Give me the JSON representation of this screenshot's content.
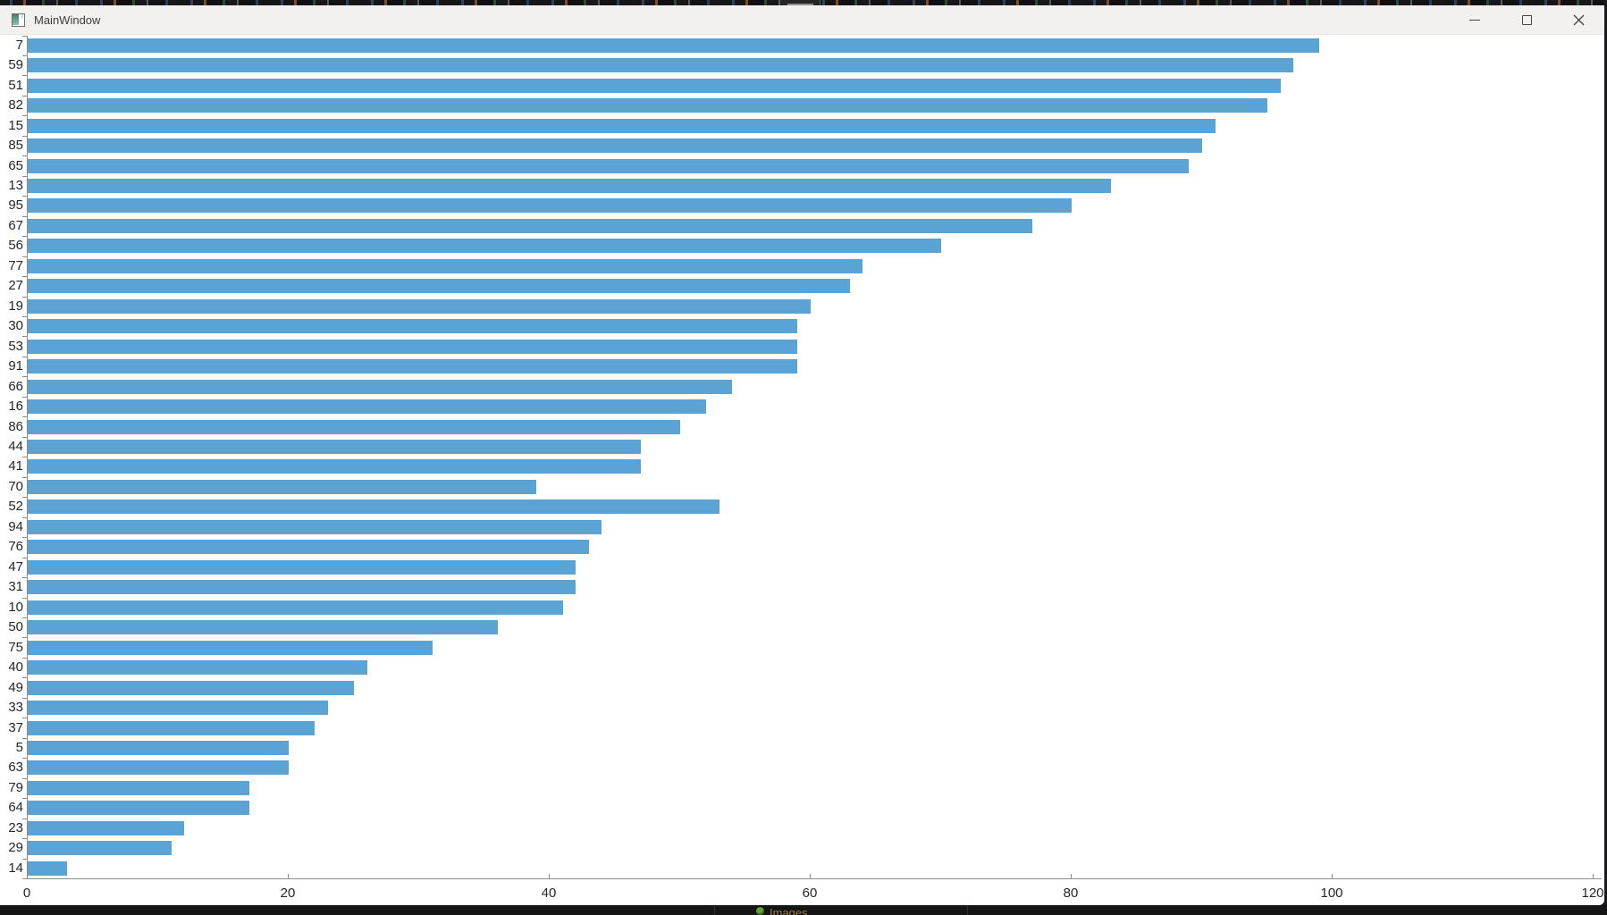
{
  "window": {
    "title": "MainWindow"
  },
  "background": {
    "taskbar_label": "Images"
  },
  "chart_data": {
    "type": "bar",
    "orientation": "horizontal",
    "title": "",
    "xlabel": "",
    "ylabel": "",
    "grid": false,
    "legend": false,
    "bar_color": "#5ba3d4",
    "axis_color": "#8c8c8c",
    "label_color": "#262626",
    "xlim": [
      0,
      120.7
    ],
    "x_ticks": [
      0,
      20,
      40,
      60,
      80,
      100,
      120
    ],
    "categories": [
      "7",
      "59",
      "51",
      "82",
      "15",
      "85",
      "65",
      "13",
      "95",
      "67",
      "56",
      "77",
      "27",
      "19",
      "30",
      "53",
      "91",
      "66",
      "16",
      "86",
      "44",
      "41",
      "70",
      "52",
      "94",
      "76",
      "47",
      "31",
      "10",
      "50",
      "75",
      "40",
      "49",
      "33",
      "37",
      "5",
      "63",
      "79",
      "64",
      "23",
      "29",
      "14"
    ],
    "values": [
      99,
      97,
      96,
      95,
      91,
      90,
      89,
      83,
      80,
      77,
      70,
      64,
      63,
      60,
      59,
      59,
      59,
      54,
      52,
      50,
      47,
      47,
      39,
      53,
      44,
      43,
      42,
      42,
      41,
      36,
      31,
      26,
      25,
      23,
      22,
      20,
      20,
      17,
      17,
      12,
      11,
      3
    ]
  }
}
